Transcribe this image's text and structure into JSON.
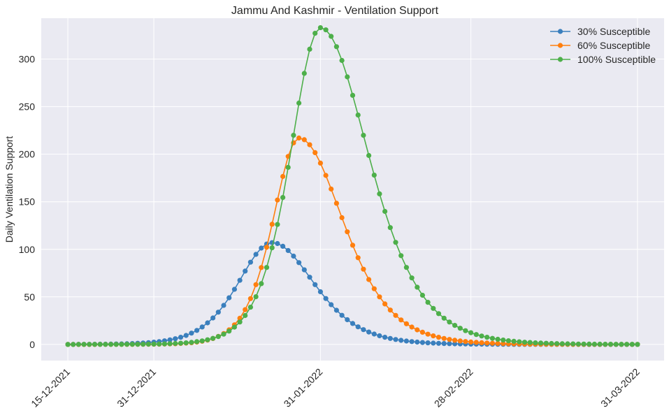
{
  "chart_data": {
    "type": "line",
    "title": "Jammu And Kashmir - Ventilation Support",
    "xlabel": "",
    "ylabel": "Daily Ventilation Support",
    "x_start": "15-12-2021",
    "x_end": "31-03-2022",
    "x_ticks": [
      "15-12-2021",
      "31-12-2021",
      "31-01-2022",
      "28-02-2022",
      "31-03-2022"
    ],
    "y_ticks": [
      0,
      50,
      100,
      150,
      200,
      250,
      300
    ],
    "ylim": [
      -17,
      343
    ],
    "grid": true,
    "legend_position": "top-right",
    "series": [
      {
        "name": "30% Susceptible",
        "color": "#3a7fbd",
        "peak_date": "22-01-2022",
        "peak_value": 107,
        "rise_width_days": 8.5,
        "fall_width_days": 10.5
      },
      {
        "name": "60% Susceptible",
        "color": "#ff7f0e",
        "peak_date": "27-01-2022",
        "peak_value": 217,
        "rise_width_days": 6.5,
        "fall_width_days": 11.0
      },
      {
        "name": "100% Susceptible",
        "color": "#4daf4a",
        "peak_date": "31-01-2022",
        "peak_value": 333,
        "rise_width_days": 7.5,
        "fall_width_days": 12.0
      }
    ]
  }
}
